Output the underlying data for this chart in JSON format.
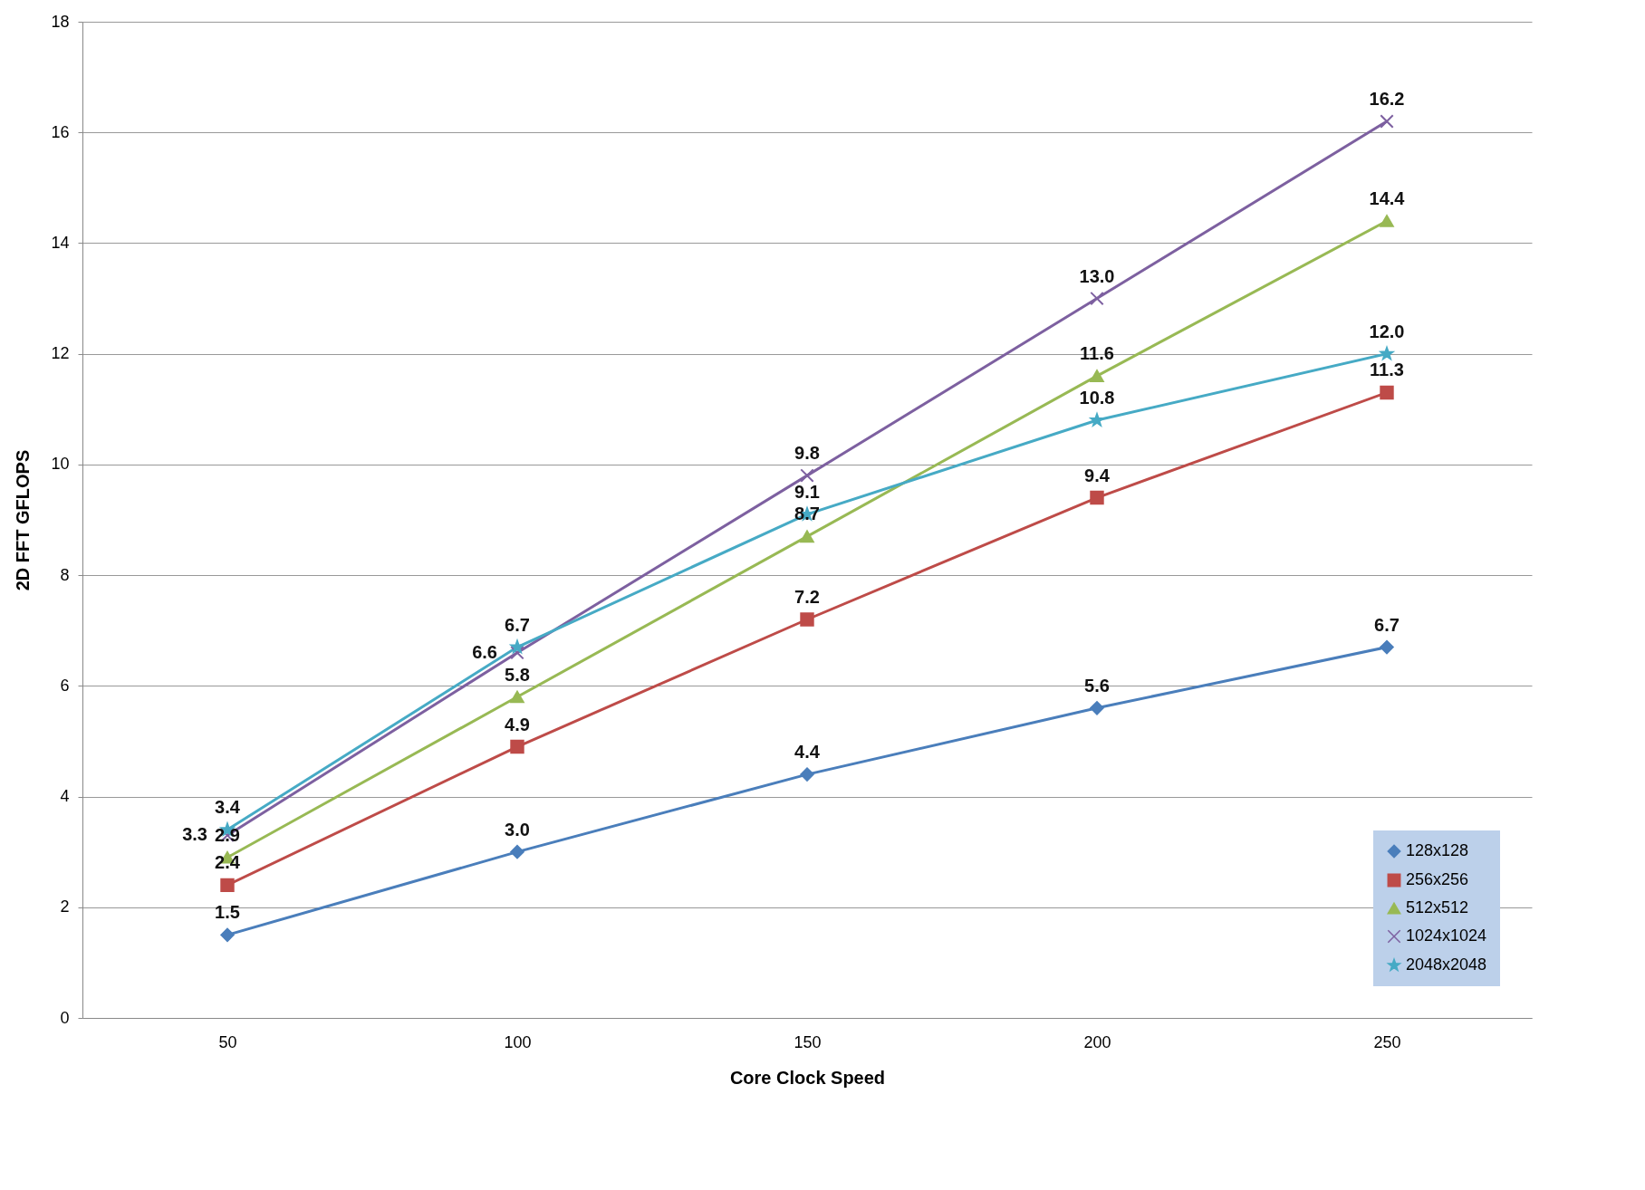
{
  "chart_data": {
    "type": "line",
    "xlabel": "Core Clock Speed",
    "ylabel": "2D FFT GFLOPS",
    "categories": [
      "50",
      "100",
      "150",
      "200",
      "250"
    ],
    "series": [
      {
        "name": "128x128",
        "color": "#4a7ebb",
        "marker": "diamond",
        "values": [
          1.5,
          3.0,
          4.4,
          5.6,
          6.7
        ],
        "value_labels": [
          "1.5",
          "3.0",
          "4.4",
          "5.6",
          "6.7"
        ]
      },
      {
        "name": "256x256",
        "color": "#be4b48",
        "marker": "square",
        "values": [
          2.4,
          4.9,
          7.2,
          9.4,
          11.3
        ],
        "value_labels": [
          "2.4",
          "4.9",
          "7.2",
          "9.4",
          "11.3"
        ]
      },
      {
        "name": "512x512",
        "color": "#98b954",
        "marker": "triangle",
        "values": [
          2.9,
          5.8,
          8.7,
          11.6,
          14.4
        ],
        "value_labels": [
          "2.9",
          "5.8",
          "8.7",
          "11.6",
          "14.4"
        ]
      },
      {
        "name": "1024x1024",
        "color": "#7d60a0",
        "marker": "cross",
        "values": [
          3.3,
          6.6,
          9.8,
          13.0,
          16.2
        ],
        "value_labels": [
          "3.3",
          "6.6",
          "9.8",
          "13.0",
          "16.2"
        ]
      },
      {
        "name": "2048x2048",
        "color": "#46aac5",
        "marker": "star",
        "values": [
          3.4,
          6.7,
          9.1,
          10.8,
          12.0
        ],
        "value_labels": [
          "3.4",
          "6.7",
          "9.1",
          "10.8",
          "12.0"
        ]
      }
    ],
    "ylim": [
      0,
      18
    ],
    "yticks": [
      0,
      2,
      4,
      6,
      8,
      10,
      12,
      14,
      16,
      18
    ],
    "grid": "y",
    "legend": "bottom right"
  }
}
